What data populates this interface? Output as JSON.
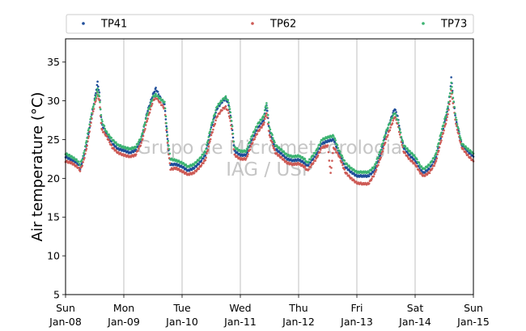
{
  "chart_data": {
    "type": "scatter",
    "ylabel": "Air temperature (°C)",
    "xlabel": "",
    "ylim": [
      5,
      38
    ],
    "xlim": [
      0,
      7
    ],
    "yticks": [
      5,
      10,
      15,
      20,
      25,
      30,
      35
    ],
    "xticks": [
      {
        "day": "Sun",
        "date": "Jan-08"
      },
      {
        "day": "Mon",
        "date": "Jan-09"
      },
      {
        "day": "Tue",
        "date": "Jan-10"
      },
      {
        "day": "Wed",
        "date": "Jan-11"
      },
      {
        "day": "Thu",
        "date": "Jan-12"
      },
      {
        "day": "Fri",
        "date": "Jan-13"
      },
      {
        "day": "Sat",
        "date": "Jan-14"
      },
      {
        "day": "Sun",
        "date": "Jan-15"
      }
    ],
    "grid": "vertical",
    "legend_position": "top",
    "watermark": [
      "Grupo de Micrometeorologia",
      "IAG / USP"
    ],
    "series": [
      {
        "name": "TP41",
        "color": "#1f4e9a",
        "points": [
          [
            0.0,
            22.8
          ],
          [
            0.1,
            22.4
          ],
          [
            0.2,
            22.0
          ],
          [
            0.25,
            21.2
          ],
          [
            0.3,
            22.5
          ],
          [
            0.35,
            24.0
          ],
          [
            0.4,
            26.0
          ],
          [
            0.45,
            28.3
          ],
          [
            0.5,
            30.2
          ],
          [
            0.55,
            32.4
          ],
          [
            0.58,
            31.0
          ],
          [
            0.62,
            27.0
          ],
          [
            0.7,
            25.8
          ],
          [
            0.8,
            24.5
          ],
          [
            0.9,
            23.8
          ],
          [
            1.0,
            23.6
          ],
          [
            1.1,
            23.3
          ],
          [
            1.2,
            23.6
          ],
          [
            1.3,
            25.0
          ],
          [
            1.4,
            28.5
          ],
          [
            1.5,
            30.8
          ],
          [
            1.55,
            31.6
          ],
          [
            1.62,
            30.5
          ],
          [
            1.7,
            29.5
          ],
          [
            1.75,
            25.0
          ],
          [
            1.8,
            21.8
          ],
          [
            1.9,
            21.8
          ],
          [
            2.0,
            21.5
          ],
          [
            2.1,
            21.0
          ],
          [
            2.2,
            21.3
          ],
          [
            2.3,
            22.0
          ],
          [
            2.4,
            23.0
          ],
          [
            2.5,
            26.5
          ],
          [
            2.6,
            29.0
          ],
          [
            2.7,
            30.0
          ],
          [
            2.75,
            30.3
          ],
          [
            2.8,
            29.5
          ],
          [
            2.85,
            27.0
          ],
          [
            2.9,
            23.5
          ],
          [
            3.0,
            23.0
          ],
          [
            3.1,
            23.0
          ],
          [
            3.2,
            25.0
          ],
          [
            3.3,
            26.5
          ],
          [
            3.4,
            27.5
          ],
          [
            3.45,
            29.5
          ],
          [
            3.5,
            26.0
          ],
          [
            3.55,
            25.0
          ],
          [
            3.6,
            23.8
          ],
          [
            3.7,
            23.2
          ],
          [
            3.8,
            22.5
          ],
          [
            3.9,
            22.3
          ],
          [
            4.0,
            22.4
          ],
          [
            4.1,
            22.0
          ],
          [
            4.15,
            21.6
          ],
          [
            4.3,
            23.0
          ],
          [
            4.4,
            24.5
          ],
          [
            4.5,
            24.8
          ],
          [
            4.6,
            25.0
          ],
          [
            4.7,
            23.2
          ],
          [
            4.8,
            21.5
          ],
          [
            4.9,
            20.8
          ],
          [
            5.0,
            20.3
          ],
          [
            5.1,
            20.3
          ],
          [
            5.2,
            20.3
          ],
          [
            5.3,
            21.0
          ],
          [
            5.4,
            23.0
          ],
          [
            5.5,
            25.8
          ],
          [
            5.6,
            28.0
          ],
          [
            5.65,
            29.0
          ],
          [
            5.7,
            28.0
          ],
          [
            5.75,
            25.8
          ],
          [
            5.8,
            24.0
          ],
          [
            5.9,
            23.0
          ],
          [
            6.0,
            22.3
          ],
          [
            6.1,
            21.0
          ],
          [
            6.15,
            20.7
          ],
          [
            6.25,
            21.3
          ],
          [
            6.35,
            22.5
          ],
          [
            6.45,
            25.5
          ],
          [
            6.55,
            28.5
          ],
          [
            6.6,
            31.0
          ],
          [
            6.62,
            33.0
          ],
          [
            6.65,
            30.5
          ],
          [
            6.7,
            27.5
          ],
          [
            6.8,
            24.3
          ],
          [
            6.9,
            23.5
          ],
          [
            7.0,
            22.8
          ]
        ]
      },
      {
        "name": "TP62",
        "color": "#cd5a55",
        "points": [
          [
            0.0,
            22.2
          ],
          [
            0.1,
            22.0
          ],
          [
            0.2,
            21.5
          ],
          [
            0.25,
            21.0
          ],
          [
            0.3,
            22.0
          ],
          [
            0.35,
            23.5
          ],
          [
            0.4,
            25.5
          ],
          [
            0.45,
            27.8
          ],
          [
            0.5,
            29.5
          ],
          [
            0.55,
            31.0
          ],
          [
            0.58,
            30.0
          ],
          [
            0.62,
            26.3
          ],
          [
            0.7,
            25.5
          ],
          [
            0.8,
            24.0
          ],
          [
            0.9,
            23.3
          ],
          [
            1.0,
            23.0
          ],
          [
            1.1,
            22.8
          ],
          [
            1.2,
            23.0
          ],
          [
            1.3,
            24.5
          ],
          [
            1.4,
            27.5
          ],
          [
            1.5,
            30.0
          ],
          [
            1.55,
            30.5
          ],
          [
            1.62,
            29.8
          ],
          [
            1.7,
            29.0
          ],
          [
            1.75,
            24.5
          ],
          [
            1.8,
            21.2
          ],
          [
            1.9,
            21.3
          ],
          [
            2.0,
            20.9
          ],
          [
            2.1,
            20.5
          ],
          [
            2.2,
            20.7
          ],
          [
            2.3,
            21.4
          ],
          [
            2.4,
            22.4
          ],
          [
            2.5,
            25.5
          ],
          [
            2.6,
            28.0
          ],
          [
            2.7,
            29.0
          ],
          [
            2.75,
            29.2
          ],
          [
            2.8,
            28.5
          ],
          [
            2.85,
            26.5
          ],
          [
            2.9,
            23.0
          ],
          [
            3.0,
            22.5
          ],
          [
            3.1,
            22.5
          ],
          [
            3.2,
            24.5
          ],
          [
            3.3,
            26.0
          ],
          [
            3.4,
            27.0
          ],
          [
            3.45,
            28.5
          ],
          [
            3.5,
            25.5
          ],
          [
            3.55,
            24.5
          ],
          [
            3.6,
            23.3
          ],
          [
            3.7,
            22.7
          ],
          [
            3.8,
            22.0
          ],
          [
            3.9,
            21.8
          ],
          [
            4.0,
            21.9
          ],
          [
            4.1,
            21.5
          ],
          [
            4.15,
            21.0
          ],
          [
            4.3,
            22.5
          ],
          [
            4.4,
            24.0
          ],
          [
            4.5,
            24.2
          ],
          [
            4.55,
            20.6
          ],
          [
            4.6,
            24.0
          ],
          [
            4.7,
            22.8
          ],
          [
            4.8,
            20.8
          ],
          [
            4.9,
            20.0
          ],
          [
            5.0,
            19.4
          ],
          [
            5.1,
            19.3
          ],
          [
            5.2,
            19.3
          ],
          [
            5.3,
            20.5
          ],
          [
            5.4,
            22.5
          ],
          [
            5.5,
            25.0
          ],
          [
            5.6,
            27.0
          ],
          [
            5.65,
            28.0
          ],
          [
            5.7,
            27.0
          ],
          [
            5.75,
            25.2
          ],
          [
            5.8,
            23.5
          ],
          [
            5.9,
            22.5
          ],
          [
            6.0,
            21.8
          ],
          [
            6.1,
            20.6
          ],
          [
            6.15,
            20.3
          ],
          [
            6.25,
            20.8
          ],
          [
            6.35,
            22.0
          ],
          [
            6.45,
            25.0
          ],
          [
            6.55,
            27.8
          ],
          [
            6.6,
            30.0
          ],
          [
            6.62,
            31.3
          ],
          [
            6.65,
            29.8
          ],
          [
            6.7,
            27.0
          ],
          [
            6.8,
            24.0
          ],
          [
            6.9,
            23.0
          ],
          [
            7.0,
            22.2
          ]
        ]
      },
      {
        "name": "TP73",
        "color": "#3cb371",
        "points": [
          [
            0.0,
            23.2
          ],
          [
            0.1,
            22.8
          ],
          [
            0.2,
            22.3
          ],
          [
            0.25,
            21.8
          ],
          [
            0.3,
            22.8
          ],
          [
            0.35,
            24.5
          ],
          [
            0.4,
            26.5
          ],
          [
            0.45,
            28.5
          ],
          [
            0.5,
            30.0
          ],
          [
            0.55,
            31.5
          ],
          [
            0.58,
            30.5
          ],
          [
            0.62,
            27.5
          ],
          [
            0.7,
            26.0
          ],
          [
            0.8,
            25.0
          ],
          [
            0.9,
            24.3
          ],
          [
            1.0,
            24.0
          ],
          [
            1.1,
            23.8
          ],
          [
            1.2,
            24.0
          ],
          [
            1.3,
            25.3
          ],
          [
            1.4,
            28.3
          ],
          [
            1.5,
            30.5
          ],
          [
            1.55,
            30.8
          ],
          [
            1.62,
            30.3
          ],
          [
            1.7,
            29.8
          ],
          [
            1.75,
            25.5
          ],
          [
            1.8,
            22.5
          ],
          [
            1.9,
            22.3
          ],
          [
            2.0,
            22.0
          ],
          [
            2.1,
            21.5
          ],
          [
            2.2,
            21.8
          ],
          [
            2.3,
            22.5
          ],
          [
            2.4,
            23.5
          ],
          [
            2.5,
            26.8
          ],
          [
            2.6,
            29.3
          ],
          [
            2.7,
            30.2
          ],
          [
            2.75,
            30.5
          ],
          [
            2.8,
            29.8
          ],
          [
            2.85,
            27.5
          ],
          [
            2.9,
            24.0
          ],
          [
            3.0,
            23.5
          ],
          [
            3.1,
            23.5
          ],
          [
            3.2,
            25.5
          ],
          [
            3.3,
            27.0
          ],
          [
            3.4,
            28.0
          ],
          [
            3.45,
            29.8
          ],
          [
            3.5,
            26.5
          ],
          [
            3.55,
            25.5
          ],
          [
            3.6,
            24.3
          ],
          [
            3.7,
            23.7
          ],
          [
            3.8,
            23.0
          ],
          [
            3.9,
            22.8
          ],
          [
            4.0,
            22.9
          ],
          [
            4.1,
            22.5
          ],
          [
            4.15,
            22.0
          ],
          [
            4.3,
            23.5
          ],
          [
            4.4,
            25.0
          ],
          [
            4.5,
            25.3
          ],
          [
            4.6,
            25.5
          ],
          [
            4.7,
            23.5
          ],
          [
            4.8,
            22.0
          ],
          [
            4.9,
            21.3
          ],
          [
            5.0,
            20.8
          ],
          [
            5.1,
            20.8
          ],
          [
            5.2,
            20.8
          ],
          [
            5.3,
            21.5
          ],
          [
            5.4,
            23.5
          ],
          [
            5.5,
            26.0
          ],
          [
            5.6,
            27.8
          ],
          [
            5.65,
            28.5
          ],
          [
            5.7,
            27.5
          ],
          [
            5.75,
            25.8
          ],
          [
            5.8,
            24.3
          ],
          [
            5.9,
            23.5
          ],
          [
            6.0,
            22.8
          ],
          [
            6.1,
            21.5
          ],
          [
            6.15,
            21.2
          ],
          [
            6.25,
            21.8
          ],
          [
            6.35,
            23.0
          ],
          [
            6.45,
            26.0
          ],
          [
            6.55,
            28.8
          ],
          [
            6.6,
            31.0
          ],
          [
            6.62,
            32.3
          ],
          [
            6.65,
            30.5
          ],
          [
            6.7,
            27.8
          ],
          [
            6.8,
            24.5
          ],
          [
            6.9,
            23.8
          ],
          [
            7.0,
            23.2
          ]
        ]
      }
    ]
  }
}
